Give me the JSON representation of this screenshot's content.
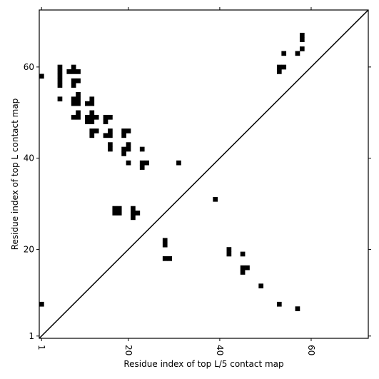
{
  "chart_data": {
    "type": "heatmap",
    "title": "",
    "xlabel": "Residue index of top L/5 contact map",
    "ylabel": "Residue index of top L contact map",
    "xlim": [
      0.5,
      72.5
    ],
    "ylim": [
      0.5,
      72.5
    ],
    "xticks": [
      1,
      20,
      40,
      60
    ],
    "yticks": [
      1,
      20,
      40,
      60
    ],
    "grid": false,
    "diagonal": true,
    "cell_color": "#000000",
    "upper_contacts": [
      [
        1,
        58
      ],
      [
        5,
        53
      ],
      [
        5,
        56
      ],
      [
        5,
        57
      ],
      [
        5,
        58
      ],
      [
        5,
        59
      ],
      [
        5,
        60
      ],
      [
        7,
        59
      ],
      [
        8,
        49
      ],
      [
        8,
        52
      ],
      [
        8,
        53
      ],
      [
        8,
        56
      ],
      [
        8,
        57
      ],
      [
        8,
        59
      ],
      [
        8,
        60
      ],
      [
        9,
        49
      ],
      [
        9,
        50
      ],
      [
        9,
        52
      ],
      [
        9,
        53
      ],
      [
        9,
        54
      ],
      [
        9,
        57
      ],
      [
        9,
        59
      ],
      [
        11,
        48
      ],
      [
        11,
        49
      ],
      [
        11,
        52
      ],
      [
        12,
        45
      ],
      [
        12,
        46
      ],
      [
        12,
        48
      ],
      [
        12,
        49
      ],
      [
        12,
        50
      ],
      [
        12,
        52
      ],
      [
        12,
        53
      ],
      [
        13,
        46
      ],
      [
        13,
        49
      ],
      [
        15,
        45
      ],
      [
        15,
        48
      ],
      [
        15,
        49
      ],
      [
        16,
        42
      ],
      [
        16,
        43
      ],
      [
        16,
        45
      ],
      [
        16,
        46
      ],
      [
        16,
        49
      ],
      [
        19,
        41
      ],
      [
        19,
        42
      ],
      [
        19,
        45
      ],
      [
        19,
        46
      ],
      [
        20,
        39
      ],
      [
        20,
        42
      ],
      [
        20,
        43
      ],
      [
        20,
        46
      ],
      [
        23,
        38
      ],
      [
        23,
        39
      ],
      [
        23,
        42
      ],
      [
        24,
        39
      ],
      [
        31,
        39
      ],
      [
        54,
        63
      ],
      [
        53,
        59
      ],
      [
        53,
        60
      ],
      [
        54,
        60
      ],
      [
        57,
        63
      ],
      [
        58,
        64
      ],
      [
        58,
        66
      ],
      [
        58,
        67
      ]
    ],
    "lower_contacts": [
      [
        1,
        8
      ],
      [
        17,
        28
      ],
      [
        17,
        29
      ],
      [
        18,
        28
      ],
      [
        18,
        29
      ],
      [
        21,
        27
      ],
      [
        21,
        28
      ],
      [
        21,
        29
      ],
      [
        22,
        28
      ],
      [
        28,
        18
      ],
      [
        28,
        21
      ],
      [
        28,
        22
      ],
      [
        29,
        18
      ],
      [
        39,
        31
      ],
      [
        42,
        19
      ],
      [
        42,
        20
      ],
      [
        45,
        15
      ],
      [
        45,
        16
      ],
      [
        45,
        19
      ],
      [
        46,
        16
      ],
      [
        49,
        12
      ],
      [
        53,
        8
      ],
      [
        57,
        7
      ]
    ]
  }
}
